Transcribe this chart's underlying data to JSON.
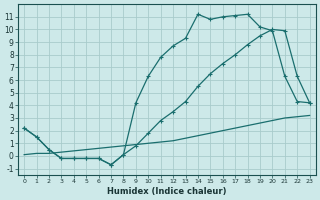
{
  "xlabel": "Humidex (Indice chaleur)",
  "bg_color": "#cde9e9",
  "grid_color": "#a8cccc",
  "line_color": "#1a6e6e",
  "xlim": [
    -0.5,
    23.5
  ],
  "ylim": [
    -1.5,
    12.0
  ],
  "xticks": [
    0,
    1,
    2,
    3,
    4,
    5,
    6,
    7,
    8,
    9,
    10,
    11,
    12,
    13,
    14,
    15,
    16,
    17,
    18,
    19,
    20,
    21,
    22,
    23
  ],
  "yticks": [
    -1,
    0,
    1,
    2,
    3,
    4,
    5,
    6,
    7,
    8,
    9,
    10,
    11
  ],
  "series1_x": [
    0,
    1,
    2,
    3,
    4,
    5,
    6,
    7,
    8,
    9,
    10,
    11,
    12,
    13,
    14,
    15,
    16,
    17,
    18,
    19,
    20,
    21,
    22,
    23
  ],
  "series1_y": [
    2.2,
    1.5,
    0.5,
    -0.2,
    -0.2,
    -0.2,
    -0.2,
    -0.7,
    0.1,
    4.2,
    6.3,
    7.8,
    8.7,
    9.3,
    11.2,
    10.8,
    11.0,
    11.1,
    11.2,
    10.2,
    9.9,
    6.3,
    4.3,
    4.2
  ],
  "series2_x": [
    0,
    1,
    2,
    3,
    4,
    5,
    6,
    7,
    8,
    9,
    10,
    11,
    12,
    13,
    14,
    15,
    16,
    17,
    18,
    19,
    20,
    21,
    22,
    23
  ],
  "series2_y": [
    2.2,
    1.5,
    0.5,
    -0.2,
    -0.2,
    -0.2,
    -0.2,
    -0.7,
    0.1,
    0.8,
    1.8,
    2.8,
    3.5,
    4.3,
    5.5,
    6.5,
    7.3,
    8.0,
    8.8,
    9.5,
    10.0,
    9.9,
    6.3,
    4.2
  ],
  "series3_x": [
    0,
    1,
    2,
    3,
    4,
    5,
    6,
    7,
    8,
    9,
    10,
    11,
    12,
    13,
    14,
    15,
    16,
    17,
    18,
    19,
    20,
    21,
    22,
    23
  ],
  "series3_y": [
    0.1,
    0.2,
    0.2,
    0.3,
    0.4,
    0.5,
    0.6,
    0.7,
    0.8,
    0.9,
    1.0,
    1.1,
    1.2,
    1.4,
    1.6,
    1.8,
    2.0,
    2.2,
    2.4,
    2.6,
    2.8,
    3.0,
    3.1,
    3.2
  ]
}
